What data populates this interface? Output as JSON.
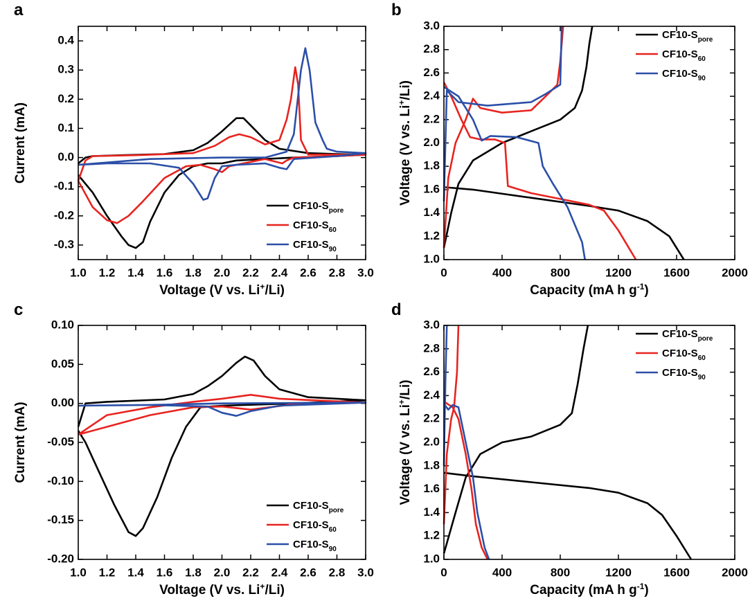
{
  "chart_data": [
    {
      "type": "line",
      "panel": "a",
      "legend": "lower right",
      "x_label": [
        "Voltage (V vs. Li",
        "+",
        "/Li)"
      ],
      "y_label": "Current (mA)",
      "xlim": [
        1.0,
        3.0
      ],
      "ylim": [
        -0.35,
        0.45
      ],
      "xticks": [
        {
          "value": 1,
          "label": "1.0"
        },
        1.2,
        1.4,
        1.6,
        1.8,
        {
          "value": 2,
          "label": "2.0"
        },
        2.2,
        2.4,
        2.6,
        2.8,
        {
          "value": 3,
          "label": "3.0"
        }
      ],
      "yticks": [
        -0.3,
        -0.2,
        -0.1,
        {
          "value": 0,
          "label": "0.0"
        },
        0.1,
        0.2,
        0.3,
        0.4
      ],
      "series": [
        {
          "name": "CF10-S",
          "subscript": "pore",
          "color": "#000000",
          "x": [
            1.0,
            1.05,
            1.1,
            1.3,
            1.6,
            1.8,
            1.9,
            2.0,
            2.1,
            2.15,
            2.2,
            2.3,
            2.4,
            2.6,
            2.8,
            3.0,
            2.8,
            2.5,
            2.3,
            2.1,
            2.0,
            1.9,
            1.8,
            1.7,
            1.6,
            1.5,
            1.45,
            1.4,
            1.35,
            1.3,
            1.2,
            1.1,
            1.0
          ],
          "values": [
            -0.02,
            0.0,
            0.005,
            0.008,
            0.012,
            0.025,
            0.05,
            0.09,
            0.135,
            0.135,
            0.11,
            0.06,
            0.03,
            0.015,
            0.012,
            0.01,
            0.005,
            0.0,
            -0.005,
            -0.01,
            -0.02,
            -0.02,
            -0.03,
            -0.06,
            -0.12,
            -0.22,
            -0.29,
            -0.31,
            -0.3,
            -0.27,
            -0.2,
            -0.12,
            -0.06
          ]
        },
        {
          "name": "CF10-S",
          "subscript": "60",
          "color": "#e8231f",
          "x": [
            1.0,
            1.05,
            1.1,
            1.4,
            1.8,
            1.95,
            2.05,
            2.12,
            2.2,
            2.3,
            2.4,
            2.45,
            2.48,
            2.51,
            2.53,
            2.55,
            2.6,
            3.0,
            2.8,
            2.5,
            2.45,
            2.42,
            2.3,
            2.05,
            2.0,
            1.95,
            1.85,
            1.75,
            1.6,
            1.45,
            1.35,
            1.27,
            1.2,
            1.1,
            1.0
          ],
          "values": [
            -0.08,
            -0.01,
            0.005,
            0.008,
            0.015,
            0.04,
            0.07,
            0.08,
            0.07,
            0.045,
            0.06,
            0.13,
            0.2,
            0.31,
            0.25,
            0.06,
            0.01,
            0.01,
            0.005,
            0.0,
            -0.01,
            -0.02,
            -0.005,
            -0.03,
            -0.05,
            -0.04,
            -0.025,
            -0.03,
            -0.07,
            -0.15,
            -0.2,
            -0.225,
            -0.215,
            -0.17,
            -0.08
          ]
        },
        {
          "name": "CF10-S",
          "subscript": "90",
          "color": "#2b4fa8",
          "x": [
            1.0,
            1.5,
            2.0,
            2.3,
            2.45,
            2.5,
            2.55,
            2.58,
            2.61,
            2.65,
            2.7,
            2.73,
            2.8,
            3.0,
            2.8,
            2.5,
            2.45,
            2.4,
            2.3,
            2.1,
            2.0,
            1.95,
            1.9,
            1.87,
            1.8,
            1.7,
            1.5,
            1.2,
            1.0
          ],
          "values": [
            -0.025,
            -0.005,
            0.0,
            0.0,
            0.02,
            0.08,
            0.3,
            0.375,
            0.3,
            0.12,
            0.06,
            0.03,
            0.02,
            0.015,
            0.005,
            -0.005,
            -0.04,
            -0.035,
            -0.02,
            -0.025,
            -0.03,
            -0.07,
            -0.14,
            -0.145,
            -0.09,
            -0.035,
            -0.02,
            -0.02,
            -0.025
          ]
        }
      ]
    },
    {
      "type": "line",
      "panel": "b",
      "legend": "upper right",
      "x_label": [
        "Capacity (mA h g",
        "-1",
        ")"
      ],
      "y_label": [
        "Voltage (V vs. Li",
        "+",
        "/Li)"
      ],
      "xlim": [
        0,
        2000
      ],
      "ylim": [
        1.0,
        3.0
      ],
      "xticks": [
        0,
        400,
        800,
        1200,
        1600,
        2000
      ],
      "yticks": [
        {
          "value": 1,
          "label": "1.0"
        },
        1.2,
        1.4,
        1.6,
        1.8,
        {
          "value": 2,
          "label": "2.0"
        },
        2.2,
        2.4,
        2.6,
        2.8,
        {
          "value": 3,
          "label": "3.0"
        }
      ],
      "series": [
        {
          "name": "CF10-S",
          "subscript": "pore",
          "color": "#000000",
          "x": [
            10,
            200,
            600,
            1000,
            1200,
            1400,
            1550,
            1650,
            null,
            0,
            50,
            100,
            200,
            400,
            600,
            800,
            900,
            950,
            980,
            1000,
            1020
          ],
          "values": [
            1.62,
            1.6,
            1.53,
            1.46,
            1.42,
            1.33,
            1.2,
            1.0,
            null,
            1.1,
            1.4,
            1.65,
            1.85,
            2.0,
            2.1,
            2.2,
            2.3,
            2.45,
            2.65,
            2.85,
            3.0
          ]
        },
        {
          "name": "CF10-S",
          "subscript": "60",
          "color": "#e8231f",
          "x": [
            0,
            50,
            120,
            180,
            250,
            350,
            420,
            440,
            600,
            800,
            1000,
            1100,
            1200,
            1320,
            null,
            0,
            30,
            80,
            150,
            200,
            250,
            400,
            600,
            700,
            780,
            800,
            820
          ],
          "values": [
            2.52,
            2.4,
            2.2,
            2.05,
            2.03,
            2.03,
            2.0,
            1.63,
            1.57,
            1.52,
            1.47,
            1.42,
            1.25,
            1.0,
            null,
            1.1,
            1.7,
            2.0,
            2.2,
            2.38,
            2.3,
            2.26,
            2.28,
            2.4,
            2.5,
            2.7,
            3.0
          ]
        },
        {
          "name": "CF10-S",
          "subscript": "90",
          "color": "#2b4fa8",
          "x": [
            0,
            100,
            200,
            260,
            320,
            500,
            650,
            680,
            750,
            850,
            950,
            970,
            null,
            0,
            20,
            100,
            300,
            600,
            700,
            800,
            810
          ],
          "values": [
            2.48,
            2.4,
            2.2,
            2.02,
            2.06,
            2.05,
            2.0,
            1.8,
            1.65,
            1.45,
            1.15,
            1.0,
            null,
            1.5,
            2.45,
            2.35,
            2.32,
            2.35,
            2.42,
            2.5,
            3.0
          ]
        }
      ]
    },
    {
      "type": "line",
      "panel": "c",
      "legend": "lower right",
      "x_label": [
        "Voltage (V vs. Li",
        "+",
        "/Li)"
      ],
      "y_label": "Current (mA)",
      "xlim": [
        1.0,
        3.0
      ],
      "ylim": [
        -0.2,
        0.1
      ],
      "xticks": [
        {
          "value": 1,
          "label": "1.0"
        },
        1.2,
        1.4,
        1.6,
        1.8,
        {
          "value": 2,
          "label": "2.0"
        },
        2.2,
        2.4,
        2.6,
        2.8,
        {
          "value": 3,
          "label": "3.0"
        }
      ],
      "yticks": [
        {
          "value": -0.2,
          "label": "-0.20"
        },
        -0.15,
        {
          "value": -0.1,
          "label": "-0.10"
        },
        -0.05,
        {
          "value": 0,
          "label": "0.00"
        },
        0.05,
        {
          "value": 0.1,
          "label": "0.10"
        }
      ],
      "series": [
        {
          "name": "CF10-S",
          "subscript": "pore",
          "color": "#000000",
          "x": [
            1.0,
            1.05,
            1.2,
            1.6,
            1.8,
            1.9,
            2.0,
            2.1,
            2.16,
            2.22,
            2.3,
            2.4,
            2.6,
            3.0,
            2.5,
            2.0,
            1.85,
            1.75,
            1.65,
            1.55,
            1.45,
            1.4,
            1.35,
            1.25,
            1.15,
            1.05,
            1.0
          ],
          "values": [
            -0.03,
            0.0,
            0.002,
            0.005,
            0.012,
            0.022,
            0.035,
            0.052,
            0.06,
            0.055,
            0.035,
            0.018,
            0.008,
            0.004,
            0.0,
            -0.003,
            -0.005,
            -0.03,
            -0.07,
            -0.12,
            -0.16,
            -0.17,
            -0.165,
            -0.13,
            -0.09,
            -0.05,
            -0.035
          ]
        },
        {
          "name": "CF10-S",
          "subscript": "60",
          "color": "#e8231f",
          "x": [
            1.0,
            1.2,
            1.5,
            1.8,
            2.0,
            2.2,
            2.4,
            3.0,
            2.5,
            2.2,
            2.0,
            1.8,
            1.5,
            1.2,
            1.0
          ],
          "values": [
            -0.04,
            -0.015,
            -0.005,
            0.002,
            0.006,
            0.011,
            0.006,
            0.001,
            -0.001,
            -0.008,
            -0.004,
            -0.005,
            -0.015,
            -0.03,
            -0.04
          ]
        },
        {
          "name": "CF10-S",
          "subscript": "90",
          "color": "#2b4fa8",
          "x": [
            1.0,
            1.5,
            2.0,
            3.0,
            2.4,
            2.2,
            2.1,
            2.0,
            1.9,
            1.5,
            1.0
          ],
          "values": [
            -0.003,
            -0.002,
            0.0,
            0.001,
            -0.003,
            -0.01,
            -0.016,
            -0.012,
            -0.004,
            -0.002,
            -0.003
          ]
        }
      ]
    },
    {
      "type": "line",
      "panel": "d",
      "legend": "upper right",
      "x_label": [
        "Capacity (mA h g",
        "-1",
        ")"
      ],
      "y_label": [
        "Voltage (V vs. Li",
        "+",
        "/Li)"
      ],
      "xlim": [
        0,
        2000
      ],
      "ylim": [
        1.0,
        3.0
      ],
      "xticks": [
        0,
        400,
        800,
        1200,
        1600,
        2000
      ],
      "yticks": [
        {
          "value": 1,
          "label": "1.0"
        },
        1.2,
        1.4,
        1.6,
        1.8,
        {
          "value": 2,
          "label": "2.0"
        },
        2.2,
        2.4,
        2.6,
        2.8,
        {
          "value": 3,
          "label": "3.0"
        }
      ],
      "series": [
        {
          "name": "CF10-S",
          "subscript": "pore",
          "color": "#000000",
          "x": [
            0,
            200,
            600,
            1000,
            1200,
            1400,
            1500,
            1600,
            1700,
            null,
            0,
            80,
            150,
            250,
            400,
            600,
            800,
            880,
            920,
            960,
            990
          ],
          "values": [
            1.74,
            1.71,
            1.66,
            1.61,
            1.57,
            1.48,
            1.38,
            1.2,
            1.0,
            null,
            1.05,
            1.4,
            1.7,
            1.9,
            2.0,
            2.05,
            2.15,
            2.25,
            2.5,
            2.8,
            3.0
          ]
        },
        {
          "name": "CF10-S",
          "subscript": "60",
          "color": "#e8231f",
          "x": [
            0,
            60,
            100,
            150,
            190,
            220,
            260,
            300,
            null,
            0,
            20,
            50,
            70,
            90,
            100
          ],
          "values": [
            2.35,
            2.3,
            2.2,
            1.9,
            1.6,
            1.3,
            1.1,
            1.0,
            null,
            1.3,
            1.9,
            2.2,
            2.3,
            2.6,
            3.0
          ]
        },
        {
          "name": "CF10-S",
          "subscript": "90",
          "color": "#2b4fa8",
          "x": [
            0,
            30,
            60,
            100,
            150,
            200,
            230,
            280,
            310,
            null,
            0,
            10,
            20
          ],
          "values": [
            2.33,
            2.28,
            2.32,
            2.3,
            2.0,
            1.7,
            1.4,
            1.1,
            1.0,
            null,
            1.8,
            2.5,
            3.0
          ]
        }
      ]
    }
  ]
}
